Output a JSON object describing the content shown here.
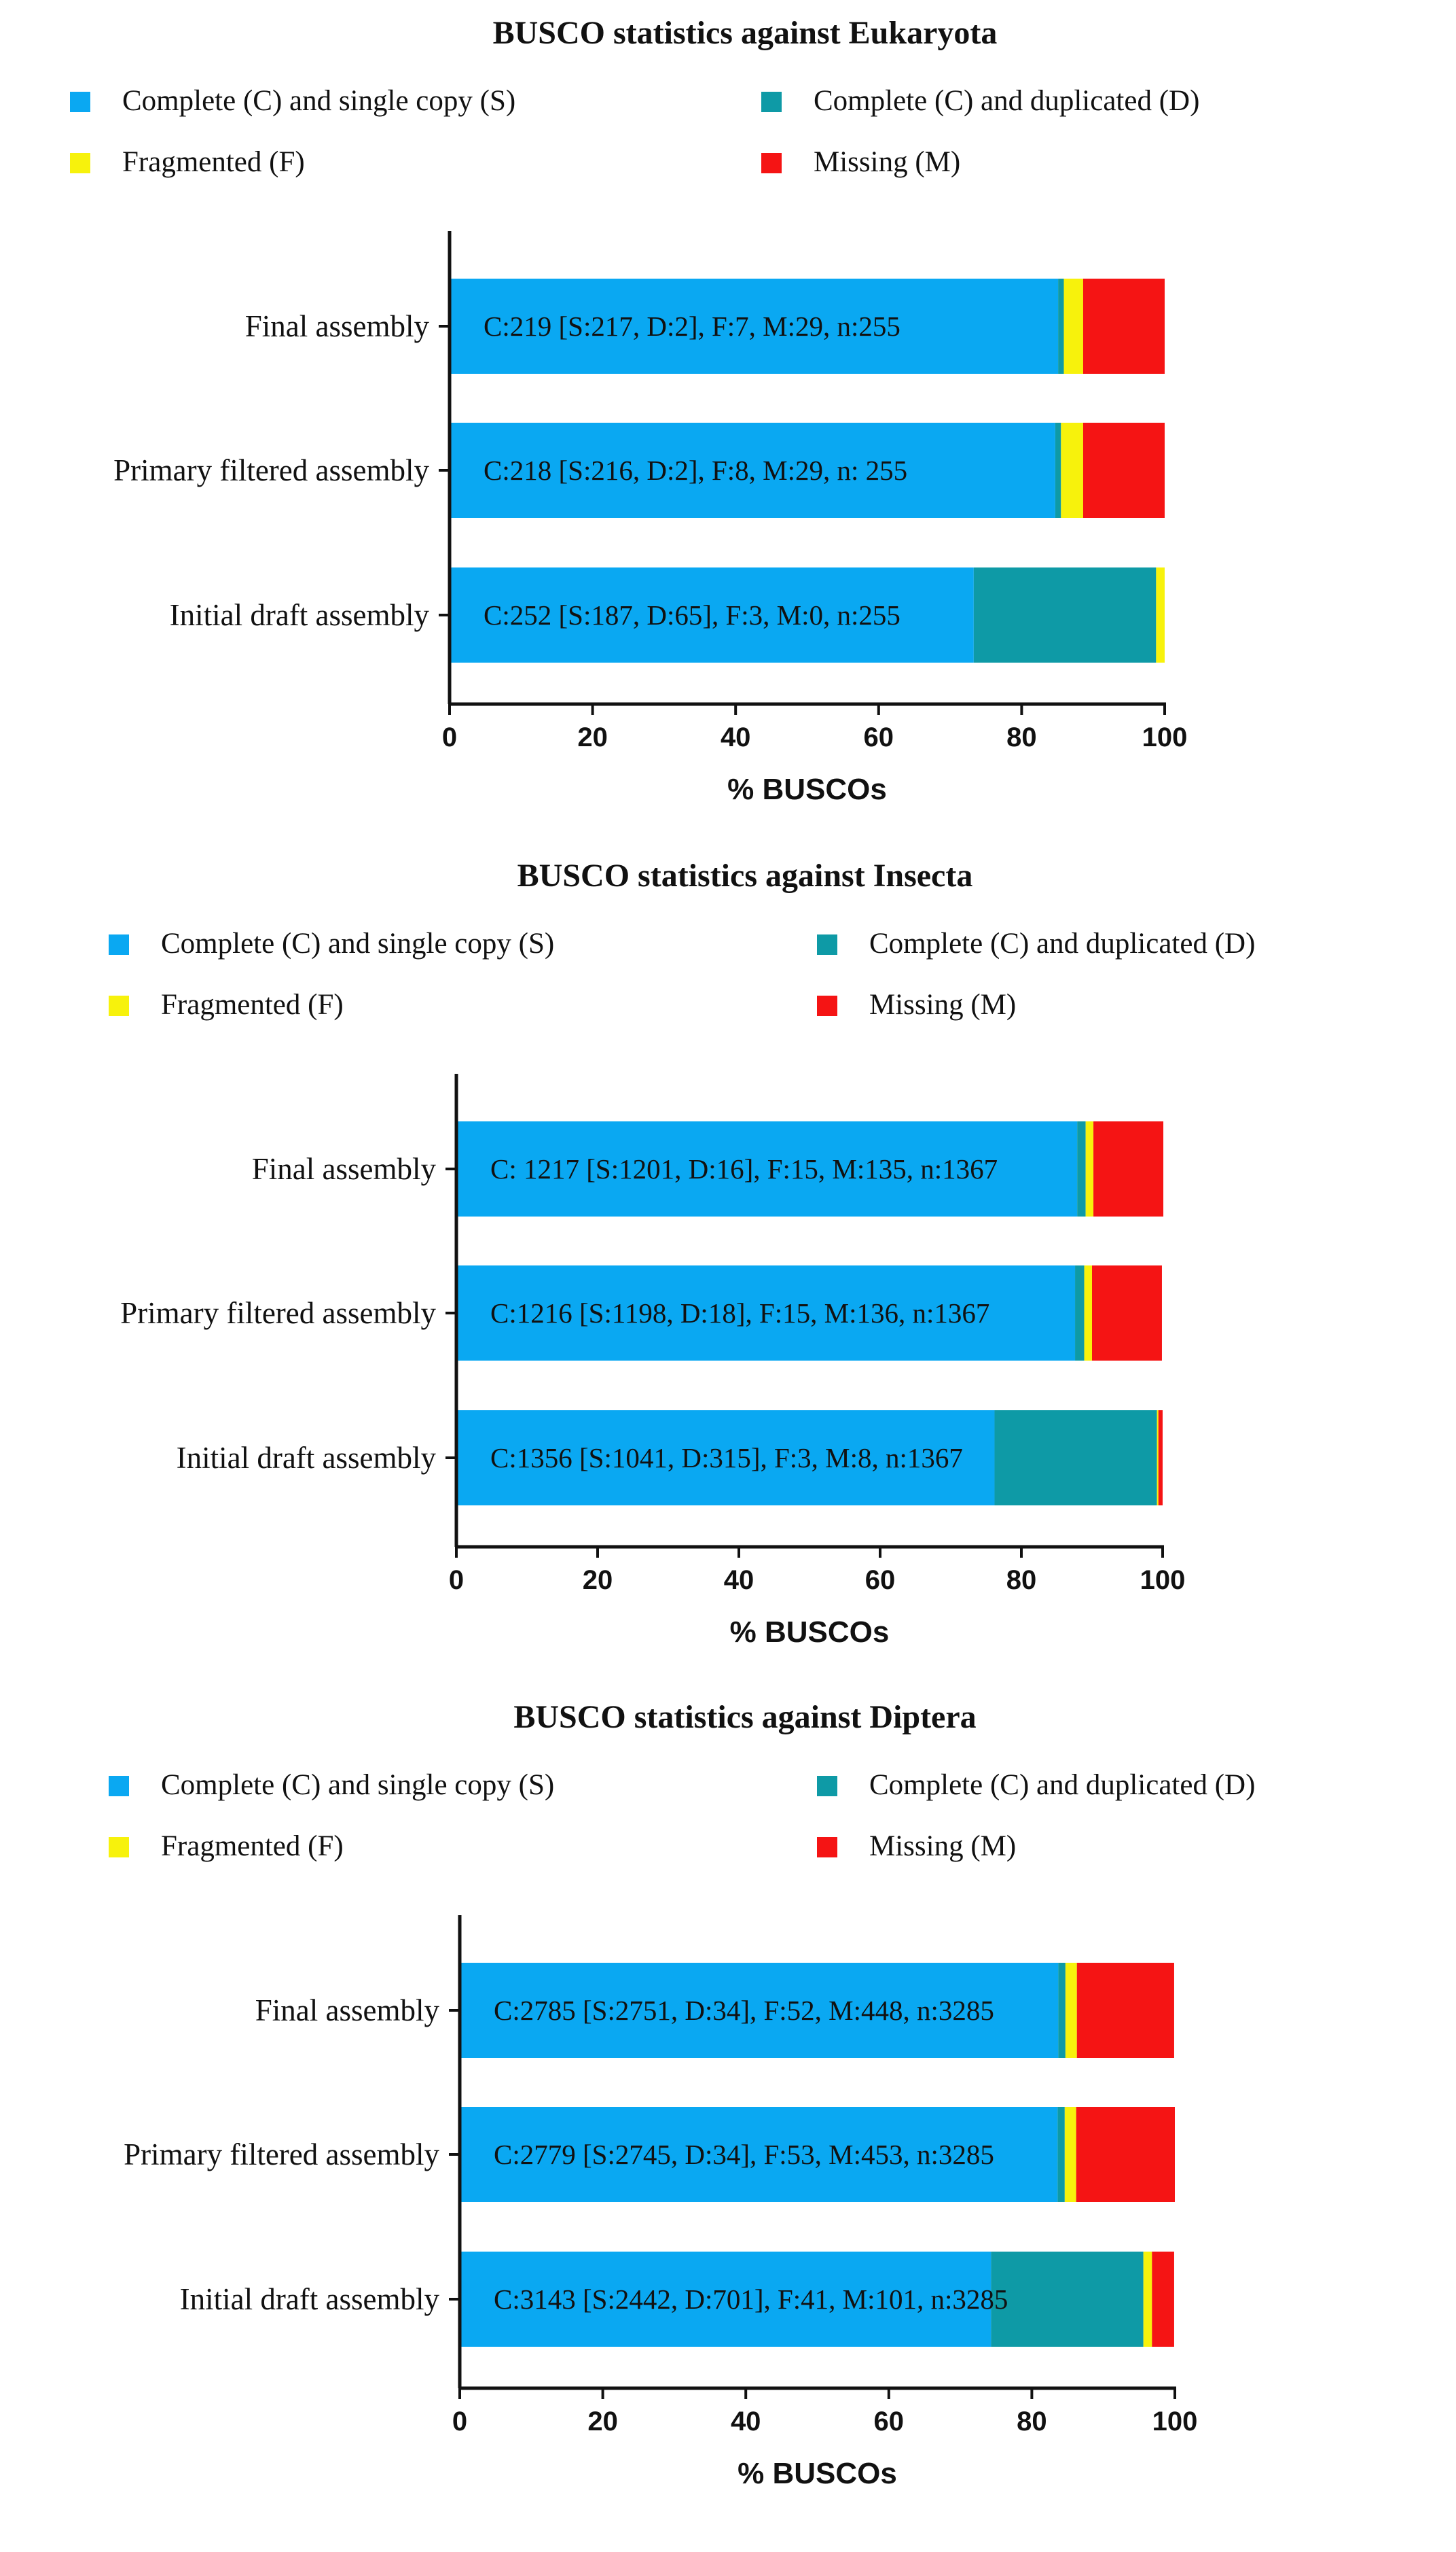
{
  "chart_data": [
    {
      "type": "bar",
      "orientation": "horizontal",
      "stacked": true,
      "title": "BUSCO statistics against Eukaryota",
      "xlabel": "% BUSCOs",
      "ylabel": "",
      "xlim": [
        0,
        100
      ],
      "xticks": [
        "0",
        "20",
        "40",
        "60",
        "80",
        "100"
      ],
      "legend": [
        {
          "label": "Complete (C) and single copy (S)",
          "color": "#0aa8f2"
        },
        {
          "label": "Complete (C) and duplicated (D)",
          "color": "#0e9aa6"
        },
        {
          "label": "Fragmented (F)",
          "color": "#f7f20c"
        },
        {
          "label": "Missing (M)",
          "color": "#f51414"
        }
      ],
      "legend_position": "top",
      "grid": false,
      "categories": [
        "Final assembly",
        "Primary filtered assembly",
        "Initial draft assembly"
      ],
      "series": [
        {
          "name": "Complete (C) and single copy (S)",
          "color": "#0aa8f2",
          "values": [
            85.1,
            84.7,
            73.3
          ]
        },
        {
          "name": "Complete (C) and duplicated (D)",
          "color": "#0e9aa6",
          "values": [
            0.8,
            0.8,
            25.5
          ]
        },
        {
          "name": "Fragmented (F)",
          "color": "#f7f20c",
          "values": [
            2.7,
            3.1,
            1.2
          ]
        },
        {
          "name": "Missing (M)",
          "color": "#f51414",
          "values": [
            11.4,
            11.4,
            0
          ]
        }
      ],
      "bar_labels": [
        "C:219 [S:217, D:2], F:7, M:29, n:255",
        "C:218 [S:216, D:2], F:8, M:29, n: 255",
        "C:252 [S:187, D:65], F:3, M:0, n:255"
      ]
    },
    {
      "type": "bar",
      "orientation": "horizontal",
      "stacked": true,
      "title": "BUSCO statistics against Insecta",
      "xlabel": "% BUSCOs",
      "ylabel": "",
      "xlim": [
        0,
        100
      ],
      "xticks": [
        "0",
        "20",
        "40",
        "60",
        "80",
        "100"
      ],
      "legend": [
        {
          "label": "Complete (C) and single copy (S)",
          "color": "#0aa8f2"
        },
        {
          "label": "Complete (C) and duplicated (D)",
          "color": "#0e9aa6"
        },
        {
          "label": "Fragmented (F)",
          "color": "#f7f20c"
        },
        {
          "label": "Missing (M)",
          "color": "#f51414"
        }
      ],
      "legend_position": "top",
      "grid": false,
      "categories": [
        "Final assembly",
        "Primary filtered assembly",
        "Initial draft assembly"
      ],
      "series": [
        {
          "name": "Complete (C) and single copy (S)",
          "color": "#0aa8f2",
          "values": [
            87.9,
            87.6,
            76.2
          ]
        },
        {
          "name": "Complete (C) and duplicated (D)",
          "color": "#0e9aa6",
          "values": [
            1.2,
            1.3,
            23.0
          ]
        },
        {
          "name": "Fragmented (F)",
          "color": "#f7f20c",
          "values": [
            1.1,
            1.1,
            0.2
          ]
        },
        {
          "name": "Missing (M)",
          "color": "#f51414",
          "values": [
            9.9,
            9.9,
            0.6
          ]
        }
      ],
      "bar_labels": [
        "C: 1217 [S:1201, D:16], F:15, M:135, n:1367",
        "C:1216 [S:1198, D:18], F:15, M:136, n:1367",
        "C:1356 [S:1041, D:315], F:3, M:8, n:1367"
      ]
    },
    {
      "type": "bar",
      "orientation": "horizontal",
      "stacked": true,
      "title": "BUSCO statistics against Diptera",
      "xlabel": "% BUSCOs",
      "ylabel": "",
      "xlim": [
        0,
        100
      ],
      "xticks": [
        "0",
        "20",
        "40",
        "60",
        "80",
        "100"
      ],
      "legend": [
        {
          "label": "Complete (C) and single copy (S)",
          "color": "#0aa8f2"
        },
        {
          "label": "Complete (C) and duplicated (D)",
          "color": "#0e9aa6"
        },
        {
          "label": "Fragmented (F)",
          "color": "#f7f20c"
        },
        {
          "label": "Missing (M)",
          "color": "#f51414"
        }
      ],
      "legend_position": "top",
      "grid": false,
      "categories": [
        "Final assembly",
        "Primary filtered assembly",
        "Initial draft assembly"
      ],
      "series": [
        {
          "name": "Complete (C) and single copy (S)",
          "color": "#0aa8f2",
          "values": [
            83.7,
            83.6,
            74.3
          ]
        },
        {
          "name": "Complete (C) and duplicated (D)",
          "color": "#0e9aa6",
          "values": [
            1.0,
            1.0,
            21.3
          ]
        },
        {
          "name": "Fragmented (F)",
          "color": "#f7f20c",
          "values": [
            1.6,
            1.6,
            1.2
          ]
        },
        {
          "name": "Missing (M)",
          "color": "#f51414",
          "values": [
            13.6,
            13.8,
            3.1
          ]
        }
      ],
      "bar_labels": [
        "C:2785 [S:2751, D:34], F:52, M:448, n:3285",
        "C:2779 [S:2745, D:34], F:53, M:453, n:3285",
        "C:3143 [S:2442, D:701], F:41, M:101, n:3285"
      ]
    }
  ]
}
